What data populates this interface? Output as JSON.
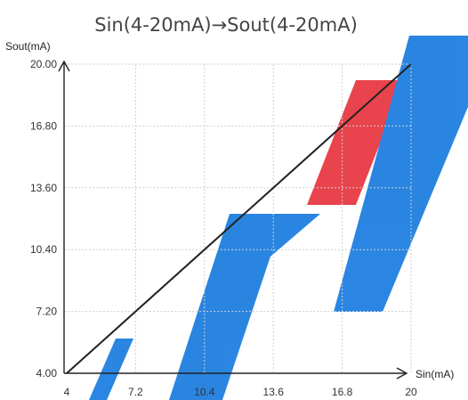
{
  "chart_data": {
    "type": "line",
    "title": "Sin(4-20mA)→Sout(4-20mA)",
    "xlabel": "Sin(mA)",
    "ylabel": "Sout(mA)",
    "xlim": [
      4,
      20
    ],
    "ylim": [
      4,
      20
    ],
    "x_ticks": [
      "4",
      "7.2",
      "10.4",
      "13.6",
      "16.8",
      "20"
    ],
    "y_ticks": [
      "4.00",
      "7.20",
      "10.40",
      "13.60",
      "16.80",
      "20.00"
    ],
    "grid": true,
    "series": [
      {
        "x": [
          4,
          20
        ],
        "y": [
          4,
          20
        ],
        "color": "#222222"
      }
    ],
    "watermark": "PTI"
  },
  "colors": {
    "watermark_blue": "#1f7fe0",
    "watermark_red": "#e83a44"
  }
}
